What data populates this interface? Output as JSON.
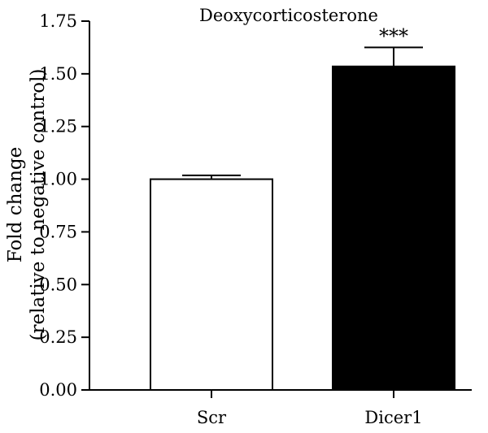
{
  "chart_data": {
    "type": "bar",
    "title": "Deoxycorticosterone",
    "xlabel": "",
    "ylabel_lines": [
      "Fold change",
      "(relative to negative control)"
    ],
    "categories": [
      "Scr",
      "Dicer1"
    ],
    "values": [
      1.0,
      1.535
    ],
    "error": [
      0.018,
      0.09
    ],
    "bar_fill": [
      "#ffffff",
      "#000000"
    ],
    "significance": [
      "",
      "***"
    ],
    "ylim": [
      0,
      1.75
    ],
    "yticks": [
      0.0,
      0.25,
      0.5,
      0.75,
      1.0,
      1.25,
      1.5,
      1.75
    ],
    "ytick_labels": [
      "0.00",
      "0.25",
      "0.50",
      "0.75",
      "1.00",
      "1.25",
      "1.50",
      "1.75"
    ],
    "grid": false,
    "legend": "none"
  }
}
